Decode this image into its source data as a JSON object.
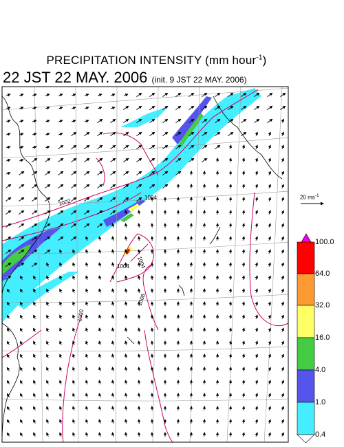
{
  "header": {
    "title_main": "PRECIPITATION INTENSITY (mm hour",
    "title_sup": "-1",
    "title_close": ")",
    "valid_time": "22 JST 22 MAY. 2006",
    "init_time": "(init. 9 JST 22 MAY. 2006)"
  },
  "vector_scale": {
    "label_main": "20 ms",
    "label_sup": "-1"
  },
  "pressure_labels": [
    "1004",
    "1002",
    "1004",
    "1008",
    "1004",
    "1000"
  ],
  "colorbar": {
    "levels": [
      "100.0",
      "64.0",
      "32.0",
      "16.0",
      "4.0",
      "1.0",
      "0.4"
    ],
    "colors": [
      "#ee00ee",
      "#ff0000",
      "#ff9933",
      "#ffff66",
      "#44cc44",
      "#5555ee",
      "#44eeff",
      "#ffffff"
    ]
  },
  "map_colors": {
    "isobar": "#cc0066",
    "coast": "#000000",
    "grid": "#999999"
  }
}
